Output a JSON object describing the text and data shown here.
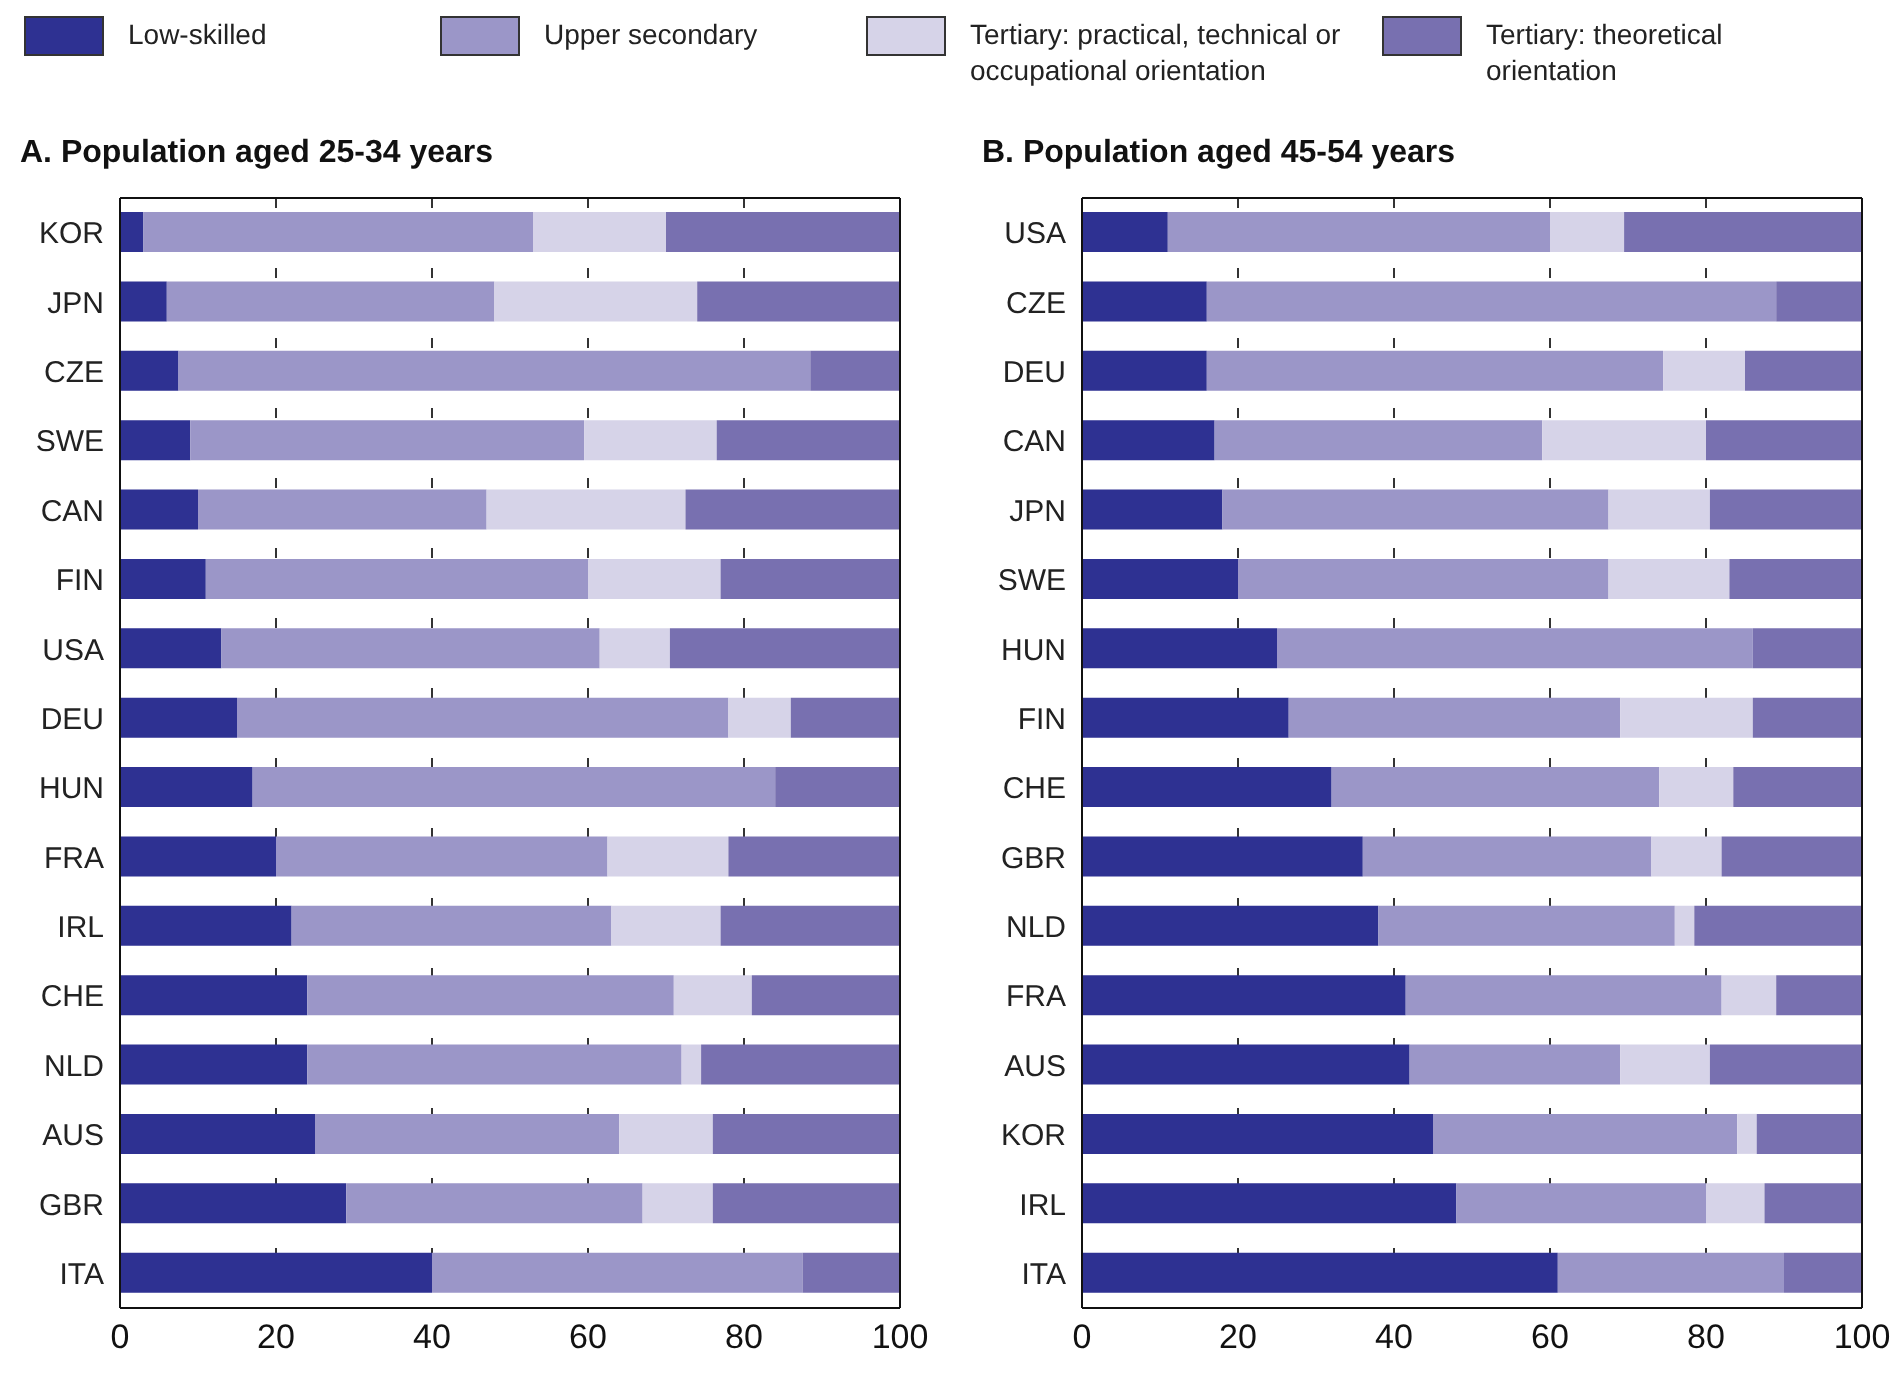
{
  "chart_data": [
    {
      "type": "bar",
      "orientation": "horizontal",
      "stacked": true,
      "title": "A. Population aged 25-34 years",
      "categories": [
        "KOR",
        "JPN",
        "CZE",
        "SWE",
        "CAN",
        "FIN",
        "USA",
        "DEU",
        "HUN",
        "FRA",
        "IRL",
        "CHE",
        "NLD",
        "AUS",
        "GBR",
        "ITA"
      ],
      "series": [
        {
          "name": "Low-skilled",
          "color": "#2e3192",
          "values": [
            3,
            6,
            7.5,
            9,
            10,
            11,
            13,
            15,
            17,
            20,
            22,
            24,
            24,
            25,
            29,
            40
          ]
        },
        {
          "name": "Upper secondary",
          "color": "#9b96c8",
          "values": [
            50,
            42,
            81,
            50.5,
            37,
            49,
            48.5,
            63,
            67,
            42.5,
            41,
            47,
            48,
            39,
            38,
            47.5
          ]
        },
        {
          "name": "Tertiary: practical, technical or occupational orientation",
          "color": "#d6d3e8",
          "values": [
            17,
            26,
            0,
            17,
            25.5,
            17,
            9,
            8,
            0,
            15.5,
            14,
            10,
            2.5,
            12,
            9,
            0
          ]
        },
        {
          "name": "Tertiary: theoretical orientation",
          "color": "#7870b0",
          "values": [
            30,
            26,
            11.5,
            23.5,
            27.5,
            23,
            29.5,
            14,
            16,
            22,
            23,
            19,
            25.5,
            24,
            24,
            12.5
          ]
        }
      ],
      "xlim": [
        0,
        100
      ],
      "xticks": [
        0,
        20,
        40,
        60,
        80,
        100
      ],
      "grid": "x",
      "legend": "top"
    },
    {
      "type": "bar",
      "orientation": "horizontal",
      "stacked": true,
      "title": "B. Population aged 45-54 years",
      "categories": [
        "USA",
        "CZE",
        "DEU",
        "CAN",
        "JPN",
        "SWE",
        "HUN",
        "FIN",
        "CHE",
        "GBR",
        "NLD",
        "FRA",
        "AUS",
        "KOR",
        "IRL",
        "ITA"
      ],
      "series": [
        {
          "color": "#2e3192",
          "values": [
            11,
            16,
            16,
            17,
            18,
            20,
            25,
            26.5,
            32,
            36,
            38,
            41.5,
            42,
            45,
            48,
            61
          ]
        },
        {
          "color": "#9b96c8",
          "values": [
            49,
            73,
            58.5,
            42,
            49.5,
            47.5,
            61,
            42.5,
            42,
            37,
            38,
            40.5,
            27,
            39,
            32,
            29
          ]
        },
        {
          "color": "#d6d3e8",
          "values": [
            9.5,
            0,
            10.5,
            21,
            13,
            15.5,
            0,
            17,
            9.5,
            9,
            2.5,
            7,
            11.5,
            2.5,
            7.5,
            0
          ]
        },
        {
          "color": "#7870b0",
          "values": [
            30.5,
            11,
            15,
            20,
            19.5,
            17,
            14,
            14,
            16.5,
            18,
            21.5,
            11,
            19.5,
            13.5,
            12.5,
            10
          ]
        }
      ],
      "xlim": [
        0,
        100
      ],
      "xticks": [
        0,
        20,
        40,
        60,
        80,
        100
      ],
      "grid": "x"
    }
  ]
}
